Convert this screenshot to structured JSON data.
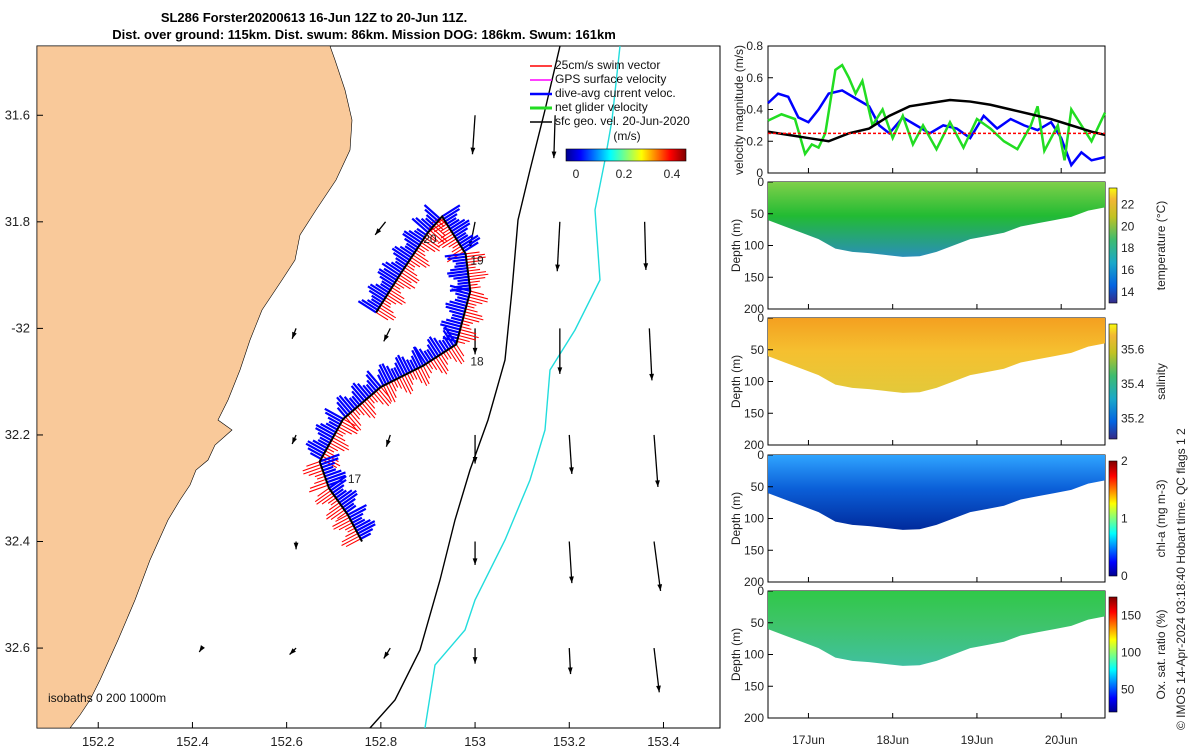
{
  "title_line1": "SL286 Forster20200613 16-Jun 12Z to 20-Jun 11Z.",
  "title_line2": "Dist. over ground: 115km. Dist. swum: 86km. Mission DOG: 186km. Swum: 161km",
  "credit": "© IMOS 14-Apr-2024 03:18:40 Hobart time. QC flags 1  2",
  "colors": {
    "land": "#f9c99a",
    "swim": "#ff0000",
    "gps": "#ff00ff",
    "dac": "#0000ff",
    "net": "#22dd22",
    "geo": "#000000",
    "isobath_shelf": "#000000",
    "isobath_deep": "#22dddd"
  },
  "chart_data": [
    {
      "type": "map",
      "name": "track-map",
      "xlim": [
        152.07,
        153.52
      ],
      "ylim": [
        -32.75,
        -31.47
      ],
      "x_ticks": [
        152.2,
        152.4,
        152.6,
        152.8,
        153,
        153.2,
        153.4
      ],
      "x_tick_labels": [
        "152.2",
        "152.4",
        "152.6",
        "152.8",
        "153",
        "153.2",
        "153.4"
      ],
      "y_ticks": [
        -31.6,
        -31.8,
        -32,
        -32.2,
        -32.4,
        -32.6
      ],
      "y_tick_labels": [
        "31.6",
        "31.8",
        "-32",
        "32.2",
        "32.4",
        "32.6"
      ],
      "legend": {
        "placement": "top-right",
        "entries": [
          "25cm/s swim vector",
          "GPS surface velocity",
          "dive-avg current veloc.",
          "net glider velocity",
          "sfc geo. vel. 20-Jun-2020"
        ]
      },
      "colorbar": {
        "label": "(m/s)",
        "ticks": [
          "0",
          "0.2",
          "0.4"
        ],
        "range": [
          0,
          0.5
        ],
        "colormap": "jet"
      },
      "isobath_label": "isobaths  0   200  1000m",
      "track": [
        [
          152.79,
          -31.97
        ],
        [
          152.84,
          -31.9
        ],
        [
          152.9,
          -31.82
        ],
        [
          152.93,
          -31.79
        ],
        [
          152.98,
          -31.86
        ],
        [
          152.99,
          -31.93
        ],
        [
          152.96,
          -32.03
        ],
        [
          152.89,
          -32.07
        ],
        [
          152.8,
          -32.11
        ],
        [
          152.72,
          -32.17
        ],
        [
          152.67,
          -32.25
        ],
        [
          152.69,
          -32.3
        ],
        [
          152.73,
          -32.35
        ],
        [
          152.76,
          -32.4
        ]
      ],
      "day_labels": [
        {
          "text": "20",
          "lon": 152.89,
          "lat": -31.84
        },
        {
          "text": "19",
          "lon": 152.99,
          "lat": -31.88
        },
        {
          "text": "18",
          "lon": 152.99,
          "lat": -32.07
        },
        {
          "text": "17",
          "lon": 152.73,
          "lat": -32.29
        }
      ],
      "geo_vectors": [
        {
          "lon": 153,
          "lat": -31.6,
          "u": -0.02,
          "v": -0.3
        },
        {
          "lon": 153.17,
          "lat": -31.6,
          "u": -0.01,
          "v": -0.33
        },
        {
          "lon": 152.81,
          "lat": -31.8,
          "u": -0.08,
          "v": -0.1
        },
        {
          "lon": 153,
          "lat": -31.8,
          "u": -0.04,
          "v": -0.2
        },
        {
          "lon": 153.18,
          "lat": -31.8,
          "u": -0.02,
          "v": -0.38
        },
        {
          "lon": 153.36,
          "lat": -31.8,
          "u": 0.01,
          "v": -0.37
        },
        {
          "lon": 152.62,
          "lat": -32.0,
          "u": -0.03,
          "v": -0.08
        },
        {
          "lon": 152.82,
          "lat": -32.0,
          "u": -0.05,
          "v": -0.1
        },
        {
          "lon": 153,
          "lat": -32.0,
          "u": 0.0,
          "v": -0.2
        },
        {
          "lon": 153.18,
          "lat": -32.0,
          "u": 0.0,
          "v": -0.35
        },
        {
          "lon": 153.37,
          "lat": -32.0,
          "u": 0.02,
          "v": -0.4
        },
        {
          "lon": 152.62,
          "lat": -32.2,
          "u": -0.03,
          "v": -0.07
        },
        {
          "lon": 152.82,
          "lat": -32.2,
          "u": -0.03,
          "v": -0.09
        },
        {
          "lon": 153,
          "lat": -32.2,
          "u": 0.0,
          "v": -0.22
        },
        {
          "lon": 153.2,
          "lat": -32.2,
          "u": 0.02,
          "v": -0.3
        },
        {
          "lon": 153.38,
          "lat": -32.2,
          "u": 0.03,
          "v": -0.4
        },
        {
          "lon": 152.62,
          "lat": -32.4,
          "u": 0.0,
          "v": -0.06
        },
        {
          "lon": 153,
          "lat": -32.4,
          "u": 0.0,
          "v": -0.18
        },
        {
          "lon": 153.2,
          "lat": -32.4,
          "u": 0.02,
          "v": -0.32
        },
        {
          "lon": 153.38,
          "lat": -32.4,
          "u": 0.05,
          "v": -0.38
        },
        {
          "lon": 152.42,
          "lat": -32.6,
          "u": -0.02,
          "v": -0.03
        },
        {
          "lon": 152.62,
          "lat": -32.6,
          "u": -0.05,
          "v": -0.05
        },
        {
          "lon": 152.82,
          "lat": -32.6,
          "u": -0.05,
          "v": -0.08
        },
        {
          "lon": 153,
          "lat": -32.6,
          "u": 0.0,
          "v": -0.12
        },
        {
          "lon": 153.2,
          "lat": -32.6,
          "u": 0.01,
          "v": -0.2
        },
        {
          "lon": 153.38,
          "lat": -32.6,
          "u": 0.04,
          "v": -0.34
        }
      ]
    },
    {
      "type": "line",
      "name": "velocity-magnitude",
      "ylabel": "velocity magnitude (m/s)",
      "ylim": [
        0,
        0.8
      ],
      "y_ticks": [
        0,
        0.2,
        0.4,
        0.6,
        0.8
      ],
      "x_range": [
        "16-Jun 12Z",
        "20-Jun 11Z"
      ],
      "x_ticks": [
        "17Jun",
        "18Jun",
        "19Jun",
        "20Jun"
      ],
      "t_ticks": [
        0.12,
        0.37,
        0.62,
        0.87
      ],
      "series": [
        {
          "color": "#0000ff",
          "t": [
            0,
            0.03,
            0.06,
            0.09,
            0.12,
            0.15,
            0.18,
            0.22,
            0.26,
            0.3,
            0.33,
            0.36,
            0.4,
            0.44,
            0.48,
            0.52,
            0.56,
            0.6,
            0.64,
            0.68,
            0.72,
            0.76,
            0.8,
            0.84,
            0.87,
            0.9,
            0.93,
            0.96,
            1.0
          ],
          "values": [
            0.44,
            0.5,
            0.48,
            0.35,
            0.32,
            0.4,
            0.5,
            0.52,
            0.47,
            0.42,
            0.3,
            0.25,
            0.35,
            0.3,
            0.25,
            0.3,
            0.28,
            0.22,
            0.36,
            0.28,
            0.34,
            0.3,
            0.27,
            0.32,
            0.22,
            0.05,
            0.13,
            0.08,
            0.1
          ]
        },
        {
          "color": "#22dd22",
          "t": [
            0,
            0.04,
            0.08,
            0.11,
            0.13,
            0.15,
            0.17,
            0.2,
            0.22,
            0.24,
            0.26,
            0.28,
            0.31,
            0.34,
            0.37,
            0.4,
            0.43,
            0.46,
            0.5,
            0.54,
            0.58,
            0.62,
            0.66,
            0.7,
            0.74,
            0.78,
            0.8,
            0.82,
            0.86,
            0.88,
            0.9,
            0.93,
            0.96,
            1.0
          ],
          "values": [
            0.33,
            0.37,
            0.34,
            0.12,
            0.18,
            0.16,
            0.25,
            0.65,
            0.68,
            0.6,
            0.5,
            0.58,
            0.3,
            0.4,
            0.22,
            0.36,
            0.18,
            0.3,
            0.15,
            0.32,
            0.16,
            0.34,
            0.28,
            0.2,
            0.15,
            0.3,
            0.42,
            0.14,
            0.3,
            0.08,
            0.4,
            0.3,
            0.2,
            0.38
          ]
        },
        {
          "color": "#000000",
          "t": [
            0,
            0.06,
            0.12,
            0.18,
            0.24,
            0.3,
            0.36,
            0.42,
            0.48,
            0.54,
            0.6,
            0.66,
            0.72,
            0.78,
            0.84,
            0.9,
            0.96,
            1.0
          ],
          "values": [
            0.26,
            0.24,
            0.22,
            0.2,
            0.25,
            0.28,
            0.36,
            0.42,
            0.44,
            0.46,
            0.45,
            0.43,
            0.4,
            0.37,
            0.34,
            0.3,
            0.26,
            0.24
          ]
        },
        {
          "color": "#ff0000",
          "t": [
            0,
            1
          ],
          "values": [
            0.25,
            0.25
          ],
          "dashed": true
        }
      ]
    },
    {
      "type": "heatmap",
      "name": "temperature-section",
      "ylabel": "Depth (m)",
      "colorbar_label": "temperature (°C)",
      "ylim": [
        0,
        200
      ],
      "y_ticks": [
        0,
        50,
        100,
        150,
        200
      ],
      "color_range": [
        13,
        23.5
      ],
      "colorbar_ticks": [
        14,
        16,
        18,
        20,
        22
      ],
      "bottom_depth_profile": [
        60,
        70,
        80,
        90,
        105,
        110,
        112,
        115,
        118,
        117,
        110,
        100,
        90,
        85,
        80,
        70,
        65,
        60,
        55,
        45,
        40
      ]
    },
    {
      "type": "heatmap",
      "name": "salinity-section",
      "ylabel": "Depth (m)",
      "colorbar_label": "salinity",
      "ylim": [
        0,
        200
      ],
      "y_ticks": [
        0,
        50,
        100,
        150,
        200
      ],
      "color_range": [
        35.08,
        35.75
      ],
      "colorbar_ticks": [
        35.2,
        35.4,
        35.6
      ],
      "bottom_depth_profile": [
        60,
        70,
        80,
        90,
        105,
        110,
        112,
        115,
        118,
        117,
        110,
        100,
        90,
        85,
        80,
        70,
        65,
        60,
        55,
        45,
        40
      ]
    },
    {
      "type": "heatmap",
      "name": "chlorophyll-section",
      "ylabel": "Depth (m)",
      "colorbar_label": "chl-a (mg m-3)",
      "ylim": [
        0,
        200
      ],
      "y_ticks": [
        0,
        50,
        100,
        150,
        200
      ],
      "color_range": [
        0,
        2
      ],
      "colorbar_ticks": [
        0,
        1,
        2
      ],
      "bottom_depth_profile": [
        60,
        70,
        80,
        90,
        105,
        110,
        112,
        115,
        118,
        117,
        110,
        100,
        90,
        85,
        80,
        70,
        65,
        60,
        55,
        45,
        40
      ]
    },
    {
      "type": "heatmap",
      "name": "oxygen-section",
      "ylabel": "Depth (m)",
      "colorbar_label": "Ox. sat. ratio (%)",
      "ylim": [
        0,
        200
      ],
      "y_ticks": [
        0,
        50,
        100,
        150,
        200
      ],
      "color_range": [
        20,
        175
      ],
      "colorbar_ticks": [
        50,
        100,
        150
      ],
      "bottom_depth_profile": [
        60,
        70,
        80,
        90,
        105,
        110,
        112,
        115,
        118,
        117,
        110,
        100,
        90,
        85,
        80,
        70,
        65,
        60,
        55,
        45,
        40
      ]
    }
  ]
}
